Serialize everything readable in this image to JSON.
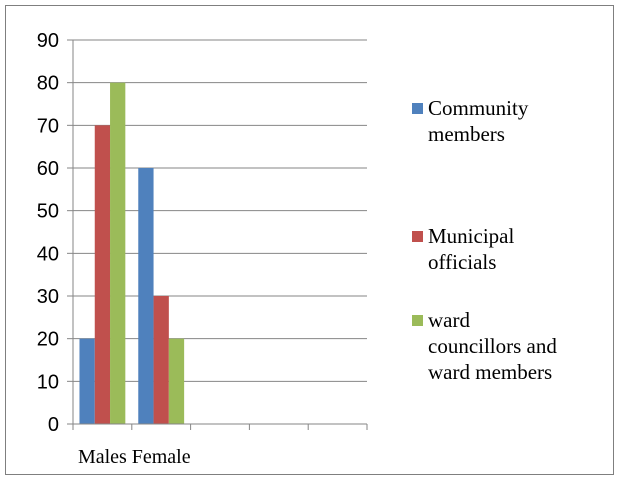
{
  "chart_data": {
    "type": "bar",
    "title": "",
    "xlabel": "",
    "ylabel": "",
    "categories": [
      "Males",
      "Female",
      "",
      "",
      ""
    ],
    "series": [
      {
        "name": "Community members",
        "values": [
          20,
          60,
          null,
          null,
          null
        ],
        "color": "#4f81bd"
      },
      {
        "name": "Municipal officials",
        "values": [
          70,
          30,
          null,
          null,
          null
        ],
        "color": "#c0504d"
      },
      {
        "name": "ward councillors and ward members",
        "values": [
          80,
          20,
          null,
          null,
          null
        ],
        "color": "#9bbb59"
      }
    ],
    "legend_lines": [
      [
        "Community",
        "members"
      ],
      [
        "Municipal",
        "officials"
      ],
      [
        "ward",
        "councillors and",
        "ward members"
      ]
    ],
    "ylim": [
      0,
      90
    ],
    "yticks": [
      0,
      10,
      20,
      30,
      40,
      50,
      60,
      70,
      80,
      90
    ],
    "grid": true,
    "legend_position": "right"
  }
}
